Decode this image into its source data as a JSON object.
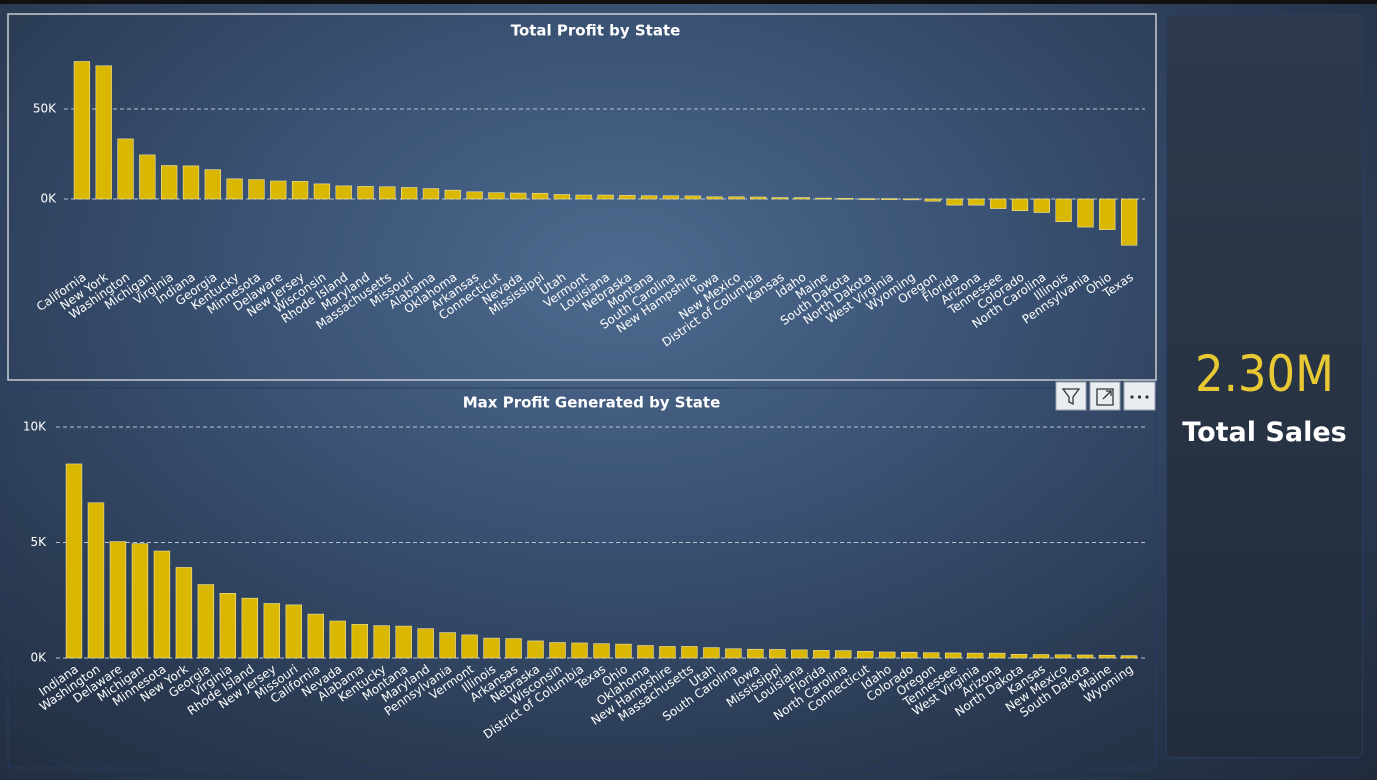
{
  "chart_data": [
    {
      "type": "bar",
      "title": "Total Profit by State",
      "categories": [
        "California",
        "New York",
        "Washington",
        "Michigan",
        "Virginia",
        "Indiana",
        "Georgia",
        "Kentucky",
        "Minnesota",
        "Delaware",
        "New Jersey",
        "Wisconsin",
        "Rhode Island",
        "Maryland",
        "Massachusetts",
        "Missouri",
        "Alabama",
        "Oklahoma",
        "Arkansas",
        "Connecticut",
        "Nevada",
        "Mississippi",
        "Utah",
        "Vermont",
        "Louisiana",
        "Nebraska",
        "Montana",
        "South Carolina",
        "New Hampshire",
        "Iowa",
        "New Mexico",
        "District of Columbia",
        "Kansas",
        "Idaho",
        "Maine",
        "South Dakota",
        "North Dakota",
        "West Virginia",
        "Wyoming",
        "Oregon",
        "Florida",
        "Arizona",
        "Tennessee",
        "Colorado",
        "North Carolina",
        "Illinois",
        "Pennsylvania",
        "Ohio",
        "Texas"
      ],
      "values": [
        76400,
        74000,
        33400,
        24500,
        18600,
        18400,
        16300,
        11200,
        10800,
        10000,
        9800,
        8400,
        7300,
        7000,
        6800,
        6400,
        5800,
        4900,
        4000,
        3500,
        3300,
        3200,
        2500,
        2200,
        2200,
        2000,
        1800,
        1800,
        1700,
        1200,
        1200,
        1100,
        800,
        800,
        500,
        400,
        200,
        200,
        100,
        -1200,
        -3400,
        -3400,
        -5300,
        -6500,
        -7500,
        -12600,
        -15600,
        -17000,
        -25700
      ],
      "color": "#dab700",
      "ylim": [
        -30000,
        80000
      ],
      "yticks": [
        {
          "value": 0,
          "label": "0K"
        },
        {
          "value": 50000,
          "label": "50K"
        }
      ],
      "grid": true
    },
    {
      "type": "bar",
      "title": "Max Profit Generated by State",
      "categories": [
        "Indiana",
        "Washington",
        "Delaware",
        "Michigan",
        "Minnesota",
        "New York",
        "Georgia",
        "Virginia",
        "Rhode Island",
        "New Jersey",
        "Missouri",
        "California",
        "Nevada",
        "Alabama",
        "Kentucky",
        "Montana",
        "Maryland",
        "Pennsylvania",
        "Vermont",
        "Illinois",
        "Arkansas",
        "Nebraska",
        "Wisconsin",
        "District of Columbia",
        "Texas",
        "Ohio",
        "Oklahoma",
        "New Hampshire",
        "Massachusetts",
        "Utah",
        "South Carolina",
        "Iowa",
        "Mississippi",
        "Louisiana",
        "Florida",
        "North Carolina",
        "Connecticut",
        "Idaho",
        "Colorado",
        "Oregon",
        "Tennessee",
        "West Virginia",
        "Arizona",
        "North Dakota",
        "Kansas",
        "New Mexico",
        "South Dakota",
        "Maine",
        "Wyoming"
      ],
      "values": [
        8400,
        6720,
        5040,
        4950,
        4630,
        3920,
        3180,
        2800,
        2590,
        2360,
        2300,
        1900,
        1600,
        1460,
        1400,
        1380,
        1270,
        1100,
        1000,
        860,
        840,
        740,
        670,
        650,
        620,
        600,
        540,
        500,
        500,
        450,
        400,
        380,
        370,
        350,
        330,
        320,
        290,
        260,
        250,
        230,
        220,
        210,
        210,
        160,
        150,
        140,
        130,
        120,
        100
      ],
      "color": "#dab700",
      "ylim": [
        0,
        10000
      ],
      "yticks": [
        {
          "value": 0,
          "label": "0K"
        },
        {
          "value": 5000,
          "label": "5K"
        },
        {
          "value": 10000,
          "label": "10K"
        }
      ],
      "grid": true
    }
  ],
  "card": {
    "value": "2.30M",
    "label": "Total Sales"
  }
}
